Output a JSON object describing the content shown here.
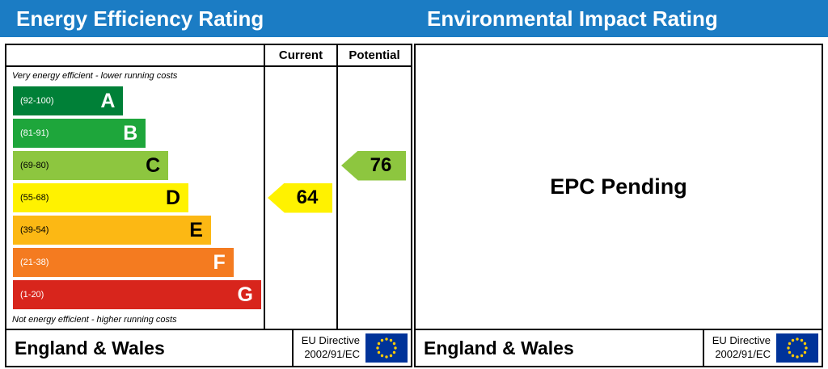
{
  "colors": {
    "header_bar": "#1b7cc4",
    "flag_background": "#003399",
    "flag_stars": "#ffcc00"
  },
  "titles": {
    "energy": "Energy Efficiency Rating",
    "environmental": "Environmental Impact Rating"
  },
  "left_chart": {
    "columns": {
      "current": "Current",
      "potential": "Potential"
    },
    "top_note": "Very energy efficient - lower running costs",
    "bottom_note": "Not energy efficient - higher running costs",
    "bands": [
      {
        "letter": "A",
        "range_label": "(92-100)",
        "color": "#008037",
        "text_color": "#ffffff",
        "width_pct": 44
      },
      {
        "letter": "B",
        "range_label": "(81-91)",
        "color": "#1ea63b",
        "text_color": "#ffffff",
        "width_pct": 53
      },
      {
        "letter": "C",
        "range_label": "(69-80)",
        "color": "#8dc63f",
        "text_color": "#000000",
        "width_pct": 62
      },
      {
        "letter": "D",
        "range_label": "(55-68)",
        "color": "#fff200",
        "text_color": "#000000",
        "width_pct": 70
      },
      {
        "letter": "E",
        "range_label": "(39-54)",
        "color": "#fcb814",
        "text_color": "#000000",
        "width_pct": 79
      },
      {
        "letter": "F",
        "range_label": "(21-38)",
        "color": "#f47b20",
        "text_color": "#ffffff",
        "width_pct": 88
      },
      {
        "letter": "G",
        "range_label": "(1-20)",
        "color": "#d8251c",
        "text_color": "#ffffff",
        "width_pct": 99
      }
    ],
    "current": {
      "value": "64",
      "band_index": 3,
      "color": "#fff200"
    },
    "potential": {
      "value": "76",
      "band_index": 2,
      "color": "#8dc63f"
    }
  },
  "right_panel": {
    "pending_text": "EPC Pending"
  },
  "footer": {
    "region": "England & Wales",
    "directive_line1": "EU Directive",
    "directive_line2": "2002/91/EC"
  },
  "chart_data": [
    {
      "type": "bar",
      "title": "Energy Efficiency Rating",
      "categories": [
        "A (92-100)",
        "B (81-91)",
        "C (69-80)",
        "D (55-68)",
        "E (39-54)",
        "F (21-38)",
        "G (1-20)"
      ],
      "band_colors": [
        "#008037",
        "#1ea63b",
        "#8dc63f",
        "#fff200",
        "#fcb814",
        "#f47b20",
        "#d8251c"
      ],
      "series": [
        {
          "name": "Current",
          "values": [
            64
          ],
          "band": "D"
        },
        {
          "name": "Potential",
          "values": [
            76
          ],
          "band": "C"
        }
      ],
      "annotations": [
        "Very energy efficient - lower running costs",
        "Not energy efficient - higher running costs"
      ],
      "legend_position": "none",
      "xlabel": "",
      "ylabel": "",
      "ylim": [
        1,
        100
      ]
    },
    {
      "type": "table",
      "title": "Environmental Impact Rating",
      "status": "EPC Pending",
      "series": []
    }
  ]
}
